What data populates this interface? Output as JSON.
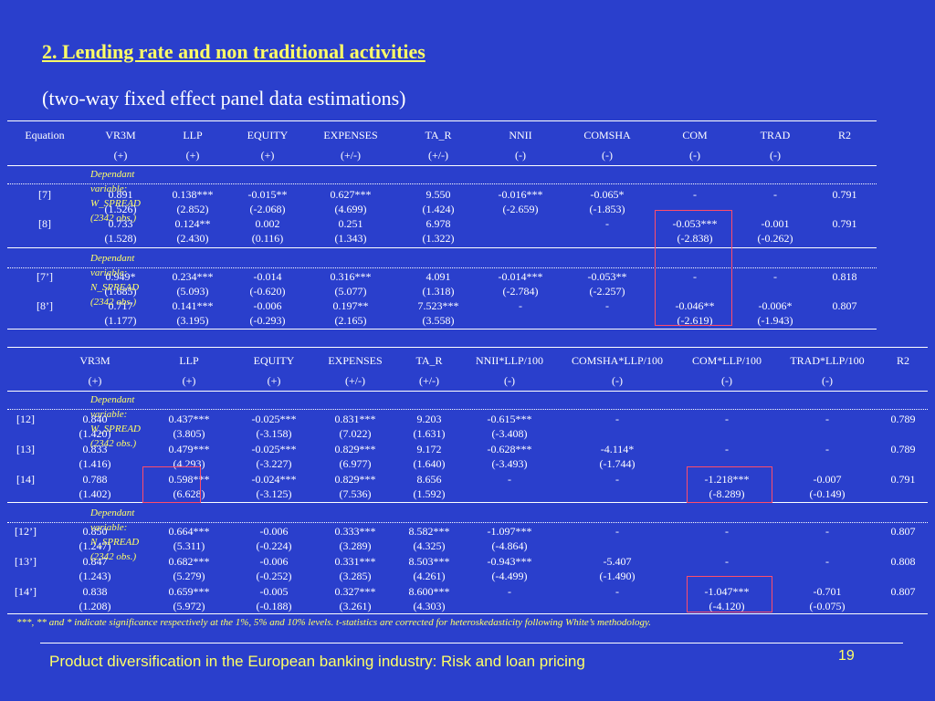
{
  "title": "2. Lending rate and non traditional activities",
  "subtitle": "(two-way fixed effect panel data estimations)",
  "table1": {
    "headers": [
      "Equation",
      "VR3M",
      "LLP",
      "EQUITY",
      "EXPENSES",
      "TA_R",
      "NNII",
      "COMSHA",
      "COM",
      "TRAD",
      "R2"
    ],
    "signs": [
      "",
      "(+)",
      "(+)",
      "(+)",
      "(+/-)",
      "(+/-)",
      "(-)",
      "(-)",
      "(-)",
      "(-)",
      ""
    ],
    "dep1": "Dependant variable: W_SPREAD (2342 obs.)",
    "dep2": "Dependant variable: N_SPREAD (2342 obs.)",
    "rows": [
      [
        "[7]",
        "0.891",
        "0.138***",
        "-0.015**",
        "0.627***",
        "9.550",
        "-0.016***",
        "-0.065*",
        "-",
        "-",
        "0.791"
      ],
      [
        "",
        "(1.526)",
        "(2.852)",
        "(-2.068)",
        "(4.699)",
        "(1.424)",
        "(-2.659)",
        "(-1.853)",
        "",
        "",
        ""
      ],
      [
        "[8]",
        "0.733",
        "0.124**",
        "0.002",
        "0.251",
        "6.978",
        "",
        "-",
        "-0.053***",
        "-0.001",
        "0.791"
      ],
      [
        "",
        "(1.528)",
        "(2.430)",
        "(0.116)",
        "(1.343)",
        "(1.322)",
        "",
        "",
        "(-2.838)",
        "(-0.262)",
        ""
      ],
      [
        "[7’]",
        "0.949*",
        "0.234***",
        "-0.014",
        "0.316***",
        "4.091",
        "-0.014***",
        "-0.053**",
        "-",
        "-",
        "0.818"
      ],
      [
        "",
        "(1.685)",
        "(5.093)",
        "(-0.620)",
        "(5.077)",
        "(1.318)",
        "(-2.784)",
        "(-2.257)",
        "",
        "",
        ""
      ],
      [
        "[8’]",
        "0.717",
        "0.141***",
        "-0.006",
        "0.197**",
        "7.523***",
        "-",
        "-",
        "-0.046**",
        "-0.006*",
        "0.807"
      ],
      [
        "",
        "(1.177)",
        "(3.195)",
        "(-0.293)",
        "(2.165)",
        "(3.558)",
        "",
        "",
        "(-2.619)",
        "(-1.943)",
        ""
      ]
    ]
  },
  "table2": {
    "headers": [
      "",
      "VR3M",
      "LLP",
      "EQUITY",
      "EXPENSES",
      "TA_R",
      "NNII*LLP/100",
      "COMSHA*LLP/100",
      "COM*LLP/100",
      "TRAD*LLP/100",
      "R2"
    ],
    "signs": [
      "",
      "(+)",
      "(+)",
      "(+)",
      "(+/-)",
      "(+/-)",
      "(-)",
      "(-)",
      "(-)",
      "(-)",
      ""
    ],
    "dep1": "Dependant variable: W_SPREAD (2342 obs.)",
    "dep2": "Dependant variable: N_SPREAD (2342 obs.)",
    "rows": [
      [
        "[12]",
        "0.840",
        "0.437***",
        "-0.025***",
        "0.831***",
        "9.203",
        "-0.615***",
        "-",
        "-",
        "-",
        "0.789"
      ],
      [
        "",
        "(1.420)",
        "(3.805)",
        "(-3.158)",
        "(7.022)",
        "(1.631)",
        "(-3.408)",
        "",
        "",
        "",
        ""
      ],
      [
        "[13]",
        "0.833",
        "0.479***",
        "-0.025***",
        "0.829***",
        "9.172",
        "-0.628***",
        "-4.114*",
        "-",
        "-",
        "0.789"
      ],
      [
        "",
        "(1.416)",
        "(4.293)",
        "(-3.227)",
        "(6.977)",
        "(1.640)",
        "(-3.493)",
        "(-1.744)",
        "",
        "",
        ""
      ],
      [
        "[14]",
        "0.788",
        "0.598***",
        "-0.024***",
        "0.829***",
        "8.656",
        "-",
        "-",
        "-1.218***",
        "-0.007",
        "0.791"
      ],
      [
        "",
        "(1.402)",
        "(6.628)",
        "(-3.125)",
        "(7.536)",
        "(1.592)",
        "",
        "",
        "(-8.289)",
        "(-0.149)",
        ""
      ],
      [
        "[12’]",
        "0.850",
        "0.664***",
        "-0.006",
        "0.333***",
        "8.582***",
        "-1.097***",
        "-",
        "-",
        "-",
        "0.807"
      ],
      [
        "",
        "(1.247)",
        "(5.311)",
        "(-0.224)",
        "(3.289)",
        "(4.325)",
        "(-4.864)",
        "",
        "",
        "",
        ""
      ],
      [
        "[13’]",
        "0.847",
        "0.682***",
        "-0.006",
        "0.331***",
        "8.503***",
        "-0.943***",
        "-5.407",
        "-",
        "-",
        "0.808"
      ],
      [
        "",
        "(1.243)",
        "(5.279)",
        "(-0.252)",
        "(3.285)",
        "(4.261)",
        "(-4.499)",
        "(-1.490)",
        "",
        "",
        ""
      ],
      [
        "[14’]",
        "0.838",
        "0.659***",
        "-0.005",
        "0.327***",
        "8.600***",
        "-",
        "-",
        "-1.047***",
        "-0.701",
        "0.807"
      ],
      [
        "",
        "(1.208)",
        "(5.972)",
        "(-0.188)",
        "(3.261)",
        "(4.303)",
        "",
        "",
        "(-4.120)",
        "(-0.075)",
        ""
      ]
    ]
  },
  "footnote": "***, ** and * indicate significance respectively at the 1%, 5% and 10% levels. t-statistics are corrected for heteroskedasticity following White’s methodology.",
  "footer": "Product diversification in the European banking industry: Risk and loan pricing",
  "page_number": "19",
  "colors": {
    "background": "#2a3fcc",
    "accent": "#ffff66",
    "highlight": "#ff4d6a"
  }
}
